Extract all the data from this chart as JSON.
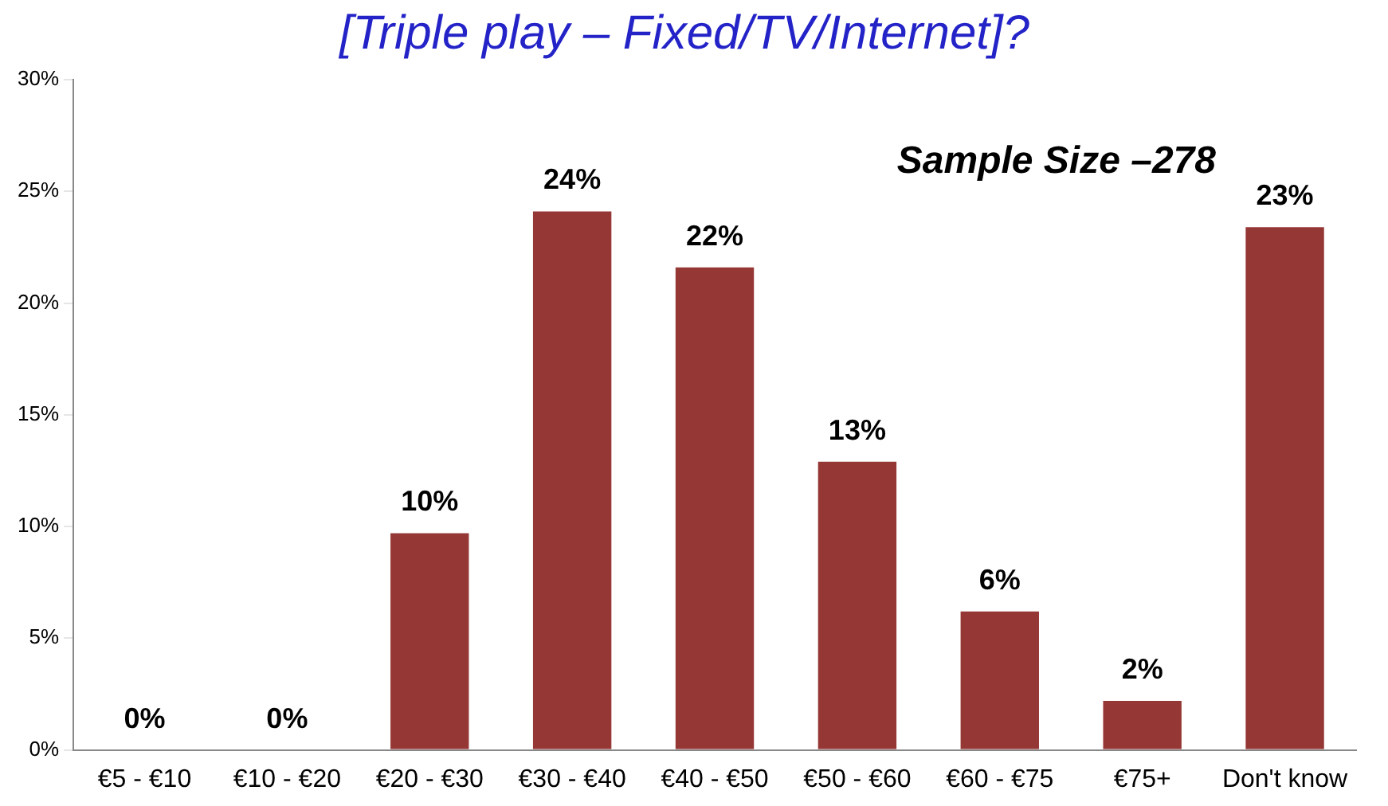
{
  "chart_data": {
    "type": "bar",
    "title": "[Triple play – Fixed/TV/Internet]?",
    "categories": [
      "€5 - €10",
      "€10 - €20",
      "€20 - €30",
      "€30 - €40",
      "€40 - €50",
      "€50 - €60",
      "€60 - €75",
      "€75+",
      "Don't know"
    ],
    "values": [
      0,
      0,
      9.7,
      24.1,
      21.6,
      12.9,
      6.2,
      2.2,
      23.4
    ],
    "value_labels": [
      "0%",
      "0%",
      "10%",
      "24%",
      "22%",
      "13%",
      "6%",
      "2%",
      "23%"
    ],
    "color": "#953735",
    "ylim": [
      0,
      30
    ],
    "yticks": [
      {
        "value": 0,
        "label": "0%"
      },
      {
        "value": 5,
        "label": "5%"
      },
      {
        "value": 10,
        "label": "10%"
      },
      {
        "value": 15,
        "label": "15%"
      },
      {
        "value": 20,
        "label": "20%"
      },
      {
        "value": 25,
        "label": "25%"
      },
      {
        "value": 30,
        "label": "30%"
      }
    ],
    "annotations": [
      "Sample Size –278"
    ],
    "grid": false,
    "legend": false
  }
}
